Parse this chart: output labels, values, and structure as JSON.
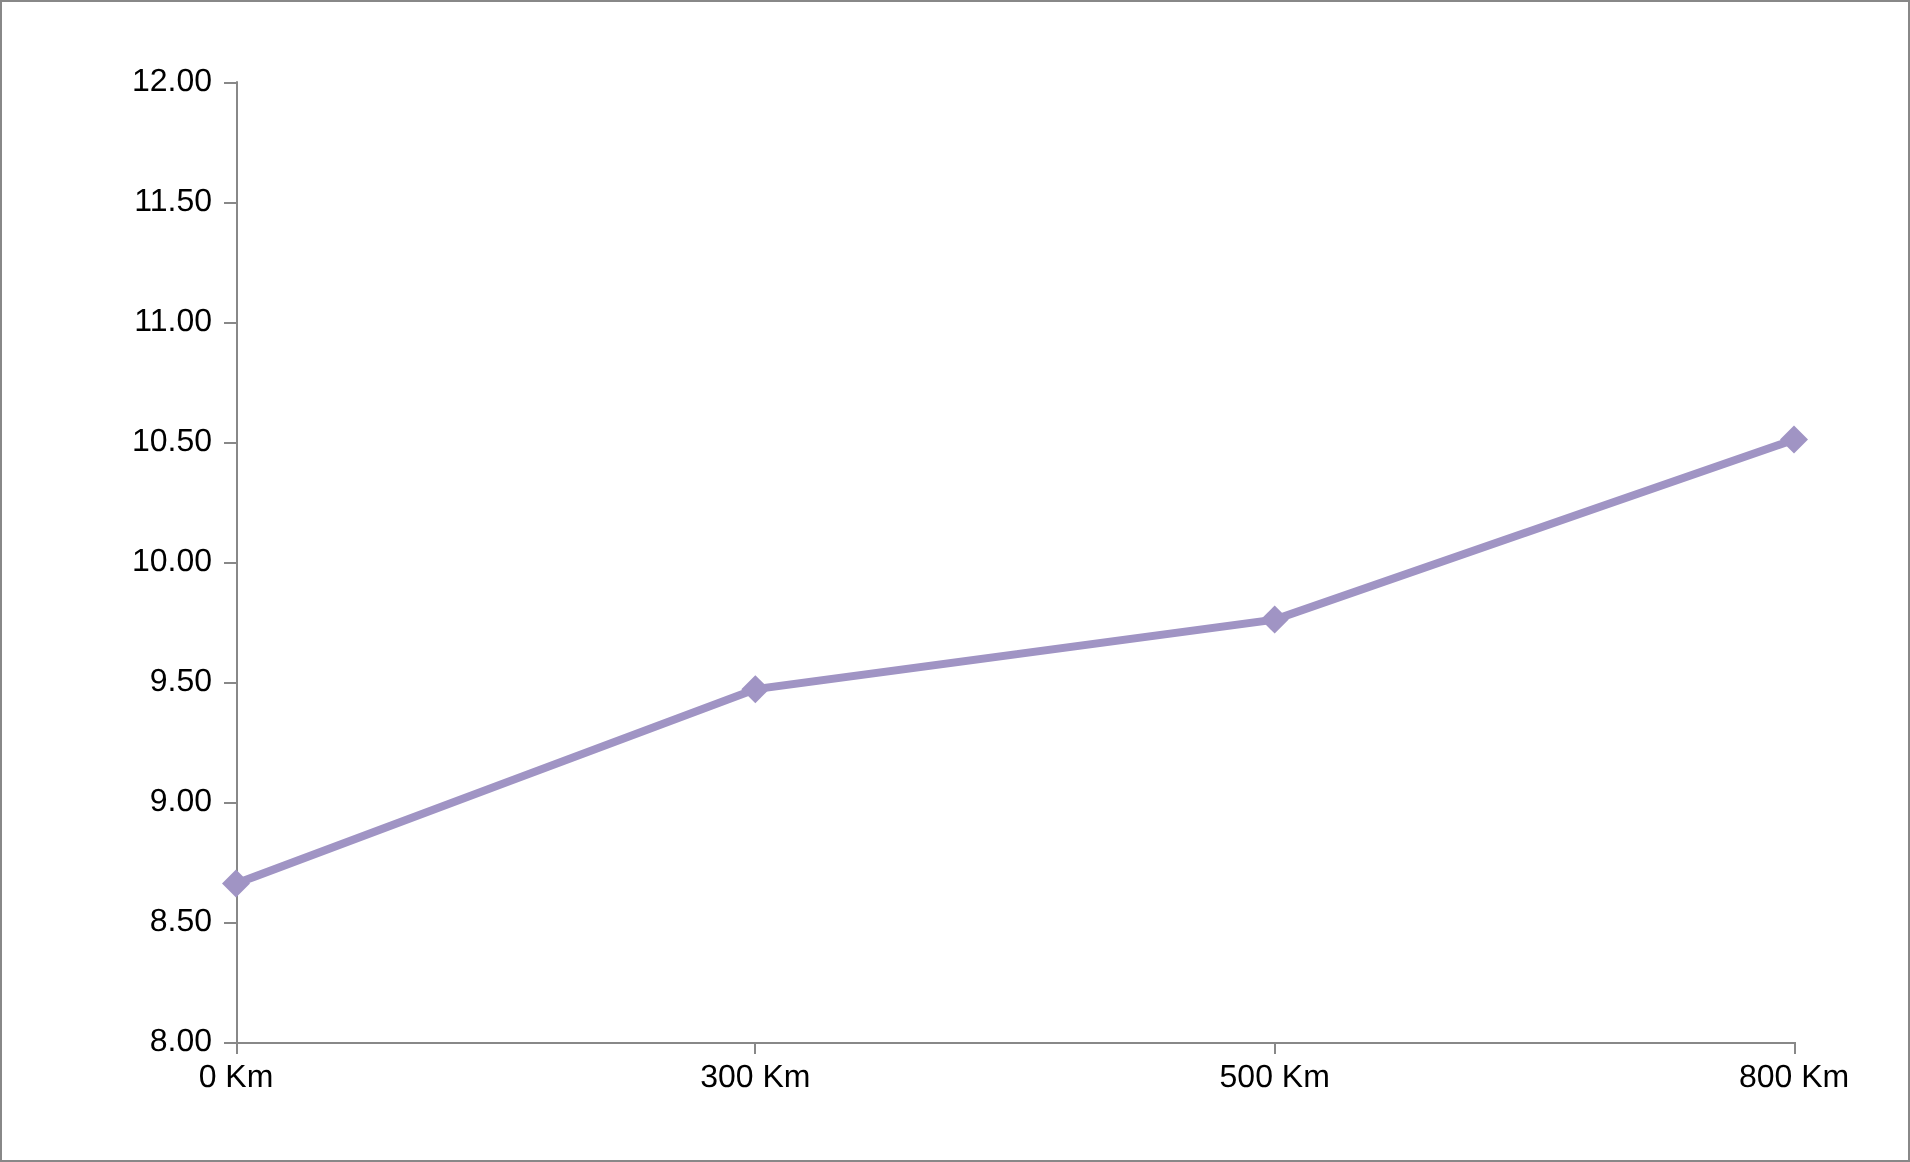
{
  "chart_data": {
    "type": "line",
    "categories": [
      "0 Km",
      "300 Km",
      "500 Km",
      "800 Km"
    ],
    "series": [
      {
        "color": "#a094c4",
        "values": [
          8.66,
          9.47,
          9.76,
          10.51
        ]
      }
    ],
    "ylim": [
      8,
      12
    ],
    "yticks": [
      {
        "value": 8,
        "label": "8.00"
      },
      {
        "value": 8.5,
        "label": "8.50"
      },
      {
        "value": 9,
        "label": "9.00"
      },
      {
        "value": 9.5,
        "label": "9.50"
      },
      {
        "value": 10,
        "label": "10.00"
      },
      {
        "value": 10.5,
        "label": "10.50"
      },
      {
        "value": 11,
        "label": "11.00"
      },
      {
        "value": 11.5,
        "label": "11.50"
      },
      {
        "value": 12,
        "label": "12.00"
      }
    ],
    "grid": false,
    "marker": "diamond",
    "line_style": "solid"
  }
}
